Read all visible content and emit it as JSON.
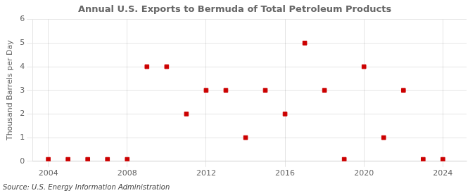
{
  "chart_data": {
    "type": "scatter",
    "title": "Annual U.S. Exports to Bermuda of Total Petroleum Products",
    "ylabel": "Thousand Barrels per Day",
    "annotations": [
      "Source: U.S. Energy Information Administration"
    ],
    "x": [
      2004,
      2005,
      2006,
      2007,
      2008,
      2009,
      2010,
      2011,
      2012,
      2013,
      2014,
      2015,
      2016,
      2017,
      2018,
      2019,
      2020,
      2021,
      2022,
      2023,
      2024
    ],
    "values": [
      0.08,
      0.08,
      0.08,
      0.08,
      0.08,
      4,
      4,
      2,
      3,
      3,
      1,
      3,
      2,
      5,
      3,
      0.08,
      4,
      1,
      3,
      0.08,
      0.08
    ],
    "color": "#cc0000",
    "marker": "square",
    "xlim": [
      2003.2,
      2025.2
    ],
    "xticks": [
      2004,
      2008,
      2012,
      2016,
      2020,
      2024
    ],
    "ylim": [
      0,
      6
    ],
    "yticks": [
      0,
      1,
      2,
      3,
      4,
      5,
      6
    ],
    "grid": true
  }
}
